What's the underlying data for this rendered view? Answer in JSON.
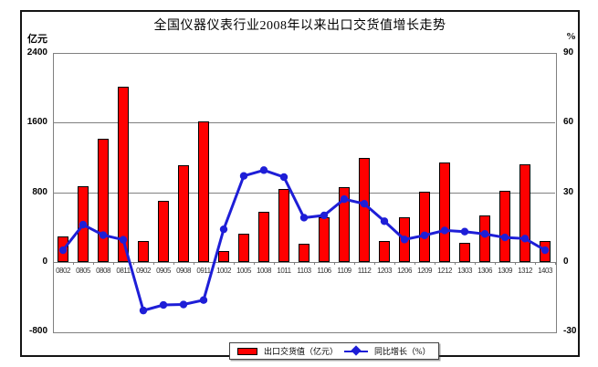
{
  "title": "全国仪器仪表行业2008年以来出口交货值增长走势",
  "left_axis": {
    "unit": "亿元",
    "ticks": [
      2400,
      1600,
      800,
      0,
      -800
    ]
  },
  "right_axis": {
    "unit": "%",
    "ticks": [
      90,
      60,
      30,
      0,
      -30
    ]
  },
  "legend": {
    "bar_label": "出口交货值（亿元）",
    "line_label": "同比增长（%）"
  },
  "colors": {
    "bar_fill": "#ff0000",
    "bar_border": "#000000",
    "line": "#1e1ed7",
    "grid": "#808080",
    "frame": "#141414"
  },
  "chart_data": {
    "type": "bar",
    "subtype": "bar+line combo, dual axis",
    "title": "全国仪器仪表行业2008年以来出口交货值增长走势",
    "categories": [
      "0802",
      "0805",
      "0808",
      "0811",
      "0902",
      "0905",
      "0908",
      "0911",
      "1002",
      "1005",
      "1008",
      "1011",
      "1103",
      "1106",
      "1109",
      "1112",
      "1203",
      "1206",
      "1209",
      "1212",
      "1303",
      "1306",
      "1309",
      "1312",
      "1403"
    ],
    "series": [
      {
        "name": "出口交货值（亿元）",
        "type": "bar",
        "axis": "left",
        "values": [
          290,
          870,
          1410,
          2010,
          240,
          700,
          1110,
          1610,
          120,
          320,
          575,
          840,
          210,
          510,
          855,
          1190,
          240,
          510,
          810,
          1140,
          220,
          530,
          815,
          1120,
          240
        ]
      },
      {
        "name": "同比增长（%）",
        "type": "line",
        "axis": "right",
        "values": [
          5,
          16,
          11.5,
          9.5,
          -21,
          -18.6,
          -18.4,
          -16.5,
          14,
          37,
          39.5,
          36.5,
          19,
          20,
          27,
          25,
          17.5,
          9.6,
          11.4,
          13.5,
          13,
          12,
          10.5,
          10,
          5
        ]
      }
    ],
    "left_ylim": [
      -800,
      2400
    ],
    "right_ylim": [
      -30,
      90
    ],
    "grid": true,
    "legend_position": "bottom-center"
  }
}
